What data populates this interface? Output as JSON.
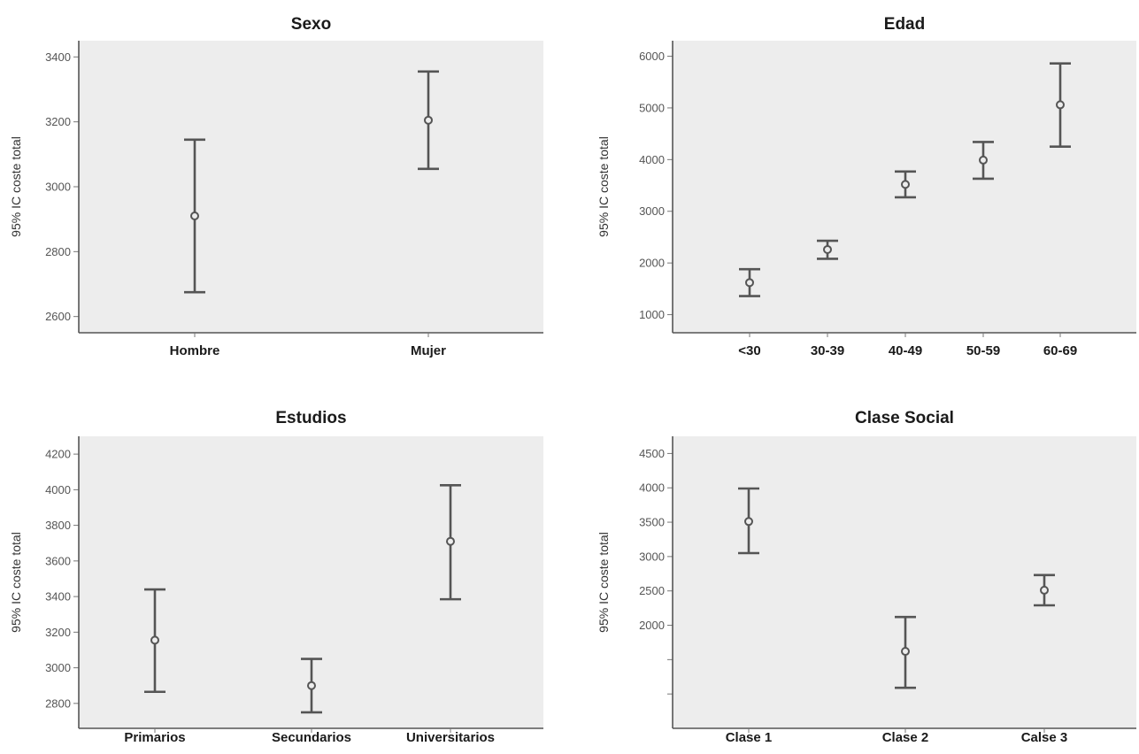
{
  "chart_data": [
    {
      "type": "errorbar",
      "title": "Sexo",
      "ylabel": "95% IC coste total",
      "ylim": [
        2550,
        3450
      ],
      "yticks": [
        2600,
        2800,
        3000,
        3200,
        3400
      ],
      "ytick_labels": [
        "2600",
        "2800",
        "3000",
        "3200",
        "3400"
      ],
      "categories": [
        "Hombre",
        "Mujer"
      ],
      "means": [
        2910,
        3205
      ],
      "lower": [
        2675,
        3055
      ],
      "upper": [
        3145,
        3355
      ]
    },
    {
      "type": "errorbar",
      "title": "Edad",
      "ylabel": "95% IC coste total",
      "ylim": [
        650,
        6300
      ],
      "yticks": [
        1000,
        2000,
        3000,
        4000,
        5000,
        6000
      ],
      "ytick_labels": [
        "1000",
        "2000",
        "3000",
        "4000",
        "5000",
        "6000"
      ],
      "categories": [
        "<30",
        "30-39",
        "40-49",
        "50-59",
        "60-69"
      ],
      "means": [
        1620,
        2260,
        3520,
        3990,
        5060
      ],
      "lower": [
        1360,
        2080,
        3270,
        3630,
        4250
      ],
      "upper": [
        1880,
        2430,
        3770,
        4340,
        5860
      ]
    },
    {
      "type": "errorbar",
      "title": "Estudios",
      "ylabel": "95% IC coste total",
      "ylim": [
        2660,
        4300
      ],
      "yticks": [
        2800,
        3000,
        3200,
        3400,
        3600,
        3800,
        4000,
        4200
      ],
      "ytick_labels": [
        "2800",
        "3000",
        "3200",
        "3400",
        "3600",
        "3800",
        "4000",
        "4200"
      ],
      "categories": [
        "Primarios",
        "Secundarios",
        "Universitarios"
      ],
      "means": [
        3155,
        2900,
        3710
      ],
      "lower": [
        2865,
        2750,
        3385
      ],
      "upper": [
        3440,
        3050,
        4025
      ]
    },
    {
      "type": "errorbar",
      "title": "Clase Social",
      "ylabel": "95% IC coste total",
      "ylim": [
        500,
        4750
      ],
      "yticks": [
        1000,
        1500,
        2000,
        2500,
        3000,
        3500,
        4000,
        4500
      ],
      "ytick_labels": [
        "",
        "",
        "2000",
        "2500",
        "3000",
        "3500",
        "4000",
        "4500"
      ],
      "categories": [
        "Clase 1",
        "Clase 2",
        "Calse 3"
      ],
      "means": [
        3510,
        1620,
        2510
      ],
      "lower": [
        3050,
        1090,
        2290
      ],
      "upper": [
        3990,
        2120,
        2730
      ]
    }
  ]
}
